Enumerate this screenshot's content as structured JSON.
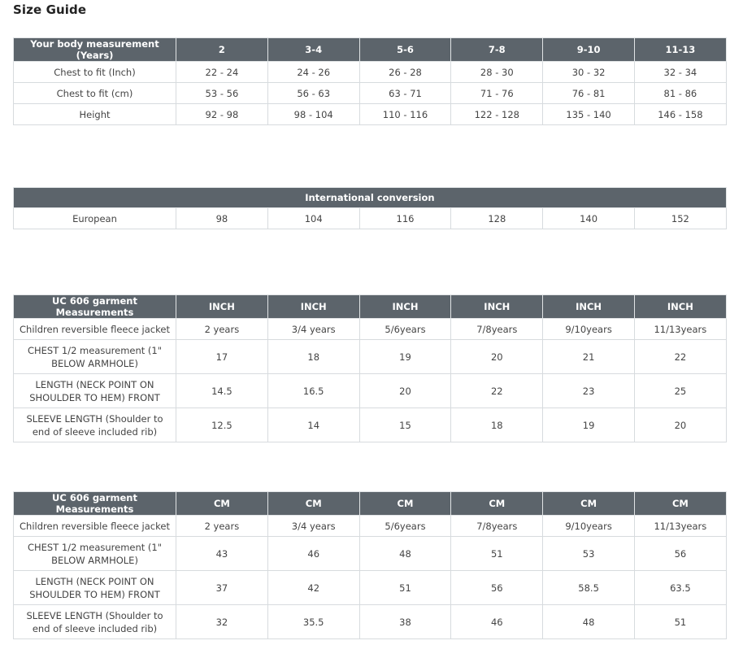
{
  "page_title": "Size Guide",
  "body_measurements": {
    "header": [
      "Your body measurement (Years)",
      "2",
      "3-4",
      "5-6",
      "7-8",
      "9-10",
      "11-13"
    ],
    "rows": [
      [
        "Chest to fit (Inch)",
        "22 - 24",
        "24 - 26",
        "26 - 28",
        "28 - 30",
        "30 - 32",
        "32 - 34"
      ],
      [
        "Chest to fit (cm)",
        "53 - 56",
        "56 - 63",
        "63 - 71",
        "71 - 76",
        "76 - 81",
        "81 - 86"
      ],
      [
        "Height",
        "92 - 98",
        "98 - 104",
        "110 - 116",
        "122 - 128",
        "135 - 140",
        "146 - 158"
      ]
    ]
  },
  "international_conversion": {
    "header": "International conversion",
    "rows": [
      [
        "European",
        "98",
        "104",
        "116",
        "128",
        "140",
        "152"
      ]
    ]
  },
  "garment_inch": {
    "header": [
      "UC 606 garment Measurements",
      "INCH",
      "INCH",
      "INCH",
      "INCH",
      "INCH",
      "INCH"
    ],
    "rows": [
      [
        "Children reversible fleece jacket",
        "2 years",
        "3/4 years",
        "5/6years",
        "7/8years",
        "9/10years",
        "11/13years"
      ],
      [
        "CHEST 1/2 measurement (1\" BELOW ARMHOLE)",
        "17",
        "18",
        "19",
        "20",
        "21",
        "22"
      ],
      [
        "LENGTH (NECK POINT ON SHOULDER TO HEM) FRONT",
        "14.5",
        "16.5",
        "20",
        "22",
        "23",
        "25"
      ],
      [
        "SLEEVE LENGTH (Shoulder to end of sleeve included rib)",
        "12.5",
        "14",
        "15",
        "18",
        "19",
        "20"
      ]
    ]
  },
  "garment_cm": {
    "header": [
      "UC 606 garment Measurements",
      "CM",
      "CM",
      "CM",
      "CM",
      "CM",
      "CM"
    ],
    "rows": [
      [
        "Children reversible fleece jacket",
        "2 years",
        "3/4 years",
        "5/6years",
        "7/8years",
        "9/10years",
        "11/13years"
      ],
      [
        "CHEST 1/2 measurement (1\" BELOW ARMHOLE)",
        "43",
        "46",
        "48",
        "51",
        "53",
        "56"
      ],
      [
        "LENGTH (NECK POINT ON SHOULDER TO HEM) FRONT",
        "37",
        "42",
        "51",
        "56",
        "58.5",
        "63.5"
      ],
      [
        "SLEEVE LENGTH (Shoulder to end of sleeve included rib)",
        "32",
        "35.5",
        "38",
        "46",
        "48",
        "51"
      ]
    ]
  },
  "colors": {
    "header_background": "#5c646b",
    "header_text": "#ffffff",
    "cell_border": "#d7dbde",
    "body_text": "#444444"
  }
}
